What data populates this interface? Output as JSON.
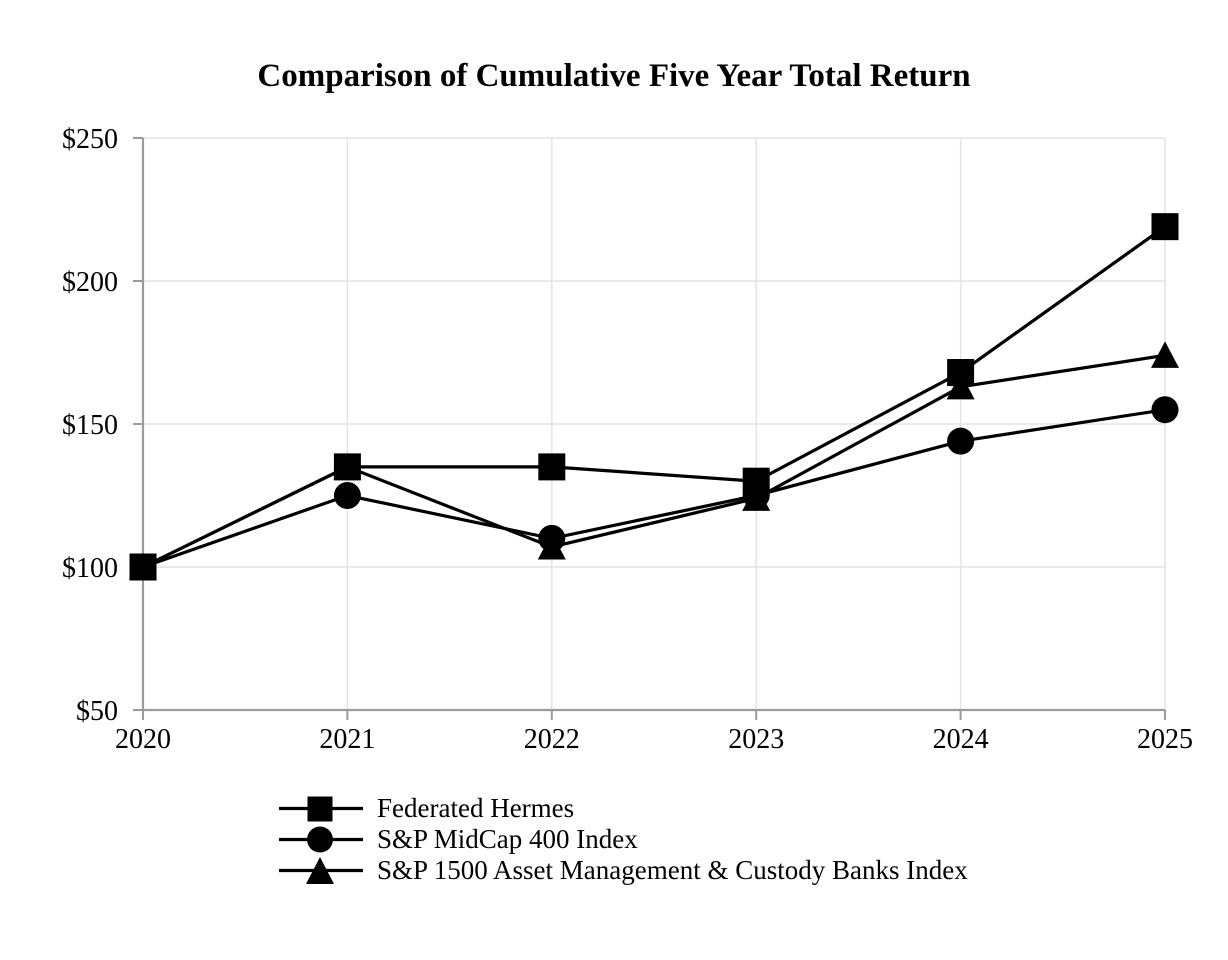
{
  "title": "Comparison of Cumulative Five Year Total Return",
  "chart_data": {
    "type": "line",
    "title": "Comparison of Cumulative Five Year Total Return",
    "categories": [
      "2020",
      "2021",
      "2022",
      "2023",
      "2024",
      "2025"
    ],
    "series": [
      {
        "name": "Federated Hermes",
        "marker": "square",
        "values": [
          100,
          135,
          135,
          130,
          168,
          219
        ]
      },
      {
        "name": "S&P MidCap 400 Index",
        "marker": "circle",
        "values": [
          100,
          125,
          110,
          125,
          144,
          155
        ]
      },
      {
        "name": "S&P 1500 Asset Management & Custody Banks Index",
        "marker": "triangle",
        "values": [
          100,
          135,
          107,
          124,
          163,
          174
        ]
      }
    ],
    "xlabel": "",
    "ylabel": "",
    "ylim": [
      50,
      250
    ],
    "yticks": [
      {
        "value": 50,
        "label": "$50"
      },
      {
        "value": 100,
        "label": "$100"
      },
      {
        "value": 150,
        "label": "$150"
      },
      {
        "value": 200,
        "label": "$200"
      },
      {
        "value": 250,
        "label": "$250"
      }
    ],
    "grid": true,
    "legend_position": "bottom-left",
    "colors": {
      "series": "#000000",
      "grid": "#e4e4e4",
      "axis": "#9b9b9b",
      "text": "#000000",
      "background": "#ffffff"
    }
  }
}
